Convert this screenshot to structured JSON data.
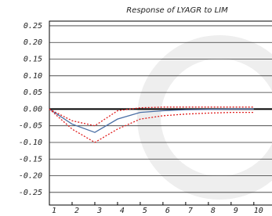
{
  "chart_data": {
    "type": "line",
    "title": "Response of LYAGR to LIM",
    "x": [
      1,
      2,
      3,
      4,
      5,
      6,
      7,
      8,
      9,
      10
    ],
    "xlim": [
      1,
      10.8
    ],
    "xticks": [
      1,
      2,
      3,
      4,
      5,
      6,
      7,
      8,
      9,
      10
    ],
    "ylim": [
      -0.288,
      0.264
    ],
    "yticks": [
      {
        "value": 0.25,
        "label": "0.25"
      },
      {
        "value": 0.2,
        "label": "0.20"
      },
      {
        "value": 0.15,
        "label": "0.15"
      },
      {
        "value": 0.1,
        "label": "0.10"
      },
      {
        "value": 0.05,
        "label": "0.05"
      },
      {
        "value": 0,
        "label": "0.00"
      },
      {
        "value": -0.05,
        "label": "-0.05"
      },
      {
        "value": -0.1,
        "label": "-0.10"
      },
      {
        "value": -0.15,
        "label": "-0.15"
      },
      {
        "value": -0.2,
        "label": "-0.20"
      },
      {
        "value": -0.25,
        "label": "-0.25"
      }
    ],
    "grid": true,
    "series": [
      {
        "color": "#4a6fa5",
        "dashed": false,
        "values": [
          0,
          -0.045,
          -0.07,
          -0.03,
          -0.01,
          -0.005,
          -0.002,
          -0.001,
          0,
          0
        ]
      },
      {
        "color": "#e02020",
        "dashed": true,
        "values": [
          0,
          -0.035,
          -0.05,
          -0.005,
          0.004,
          0.006,
          0.006,
          0.006,
          0.006,
          0.006
        ]
      },
      {
        "color": "#e02020",
        "dashed": true,
        "values": [
          0,
          -0.06,
          -0.1,
          -0.06,
          -0.03,
          -0.02,
          -0.015,
          -0.012,
          -0.01,
          -0.01
        ]
      }
    ]
  }
}
